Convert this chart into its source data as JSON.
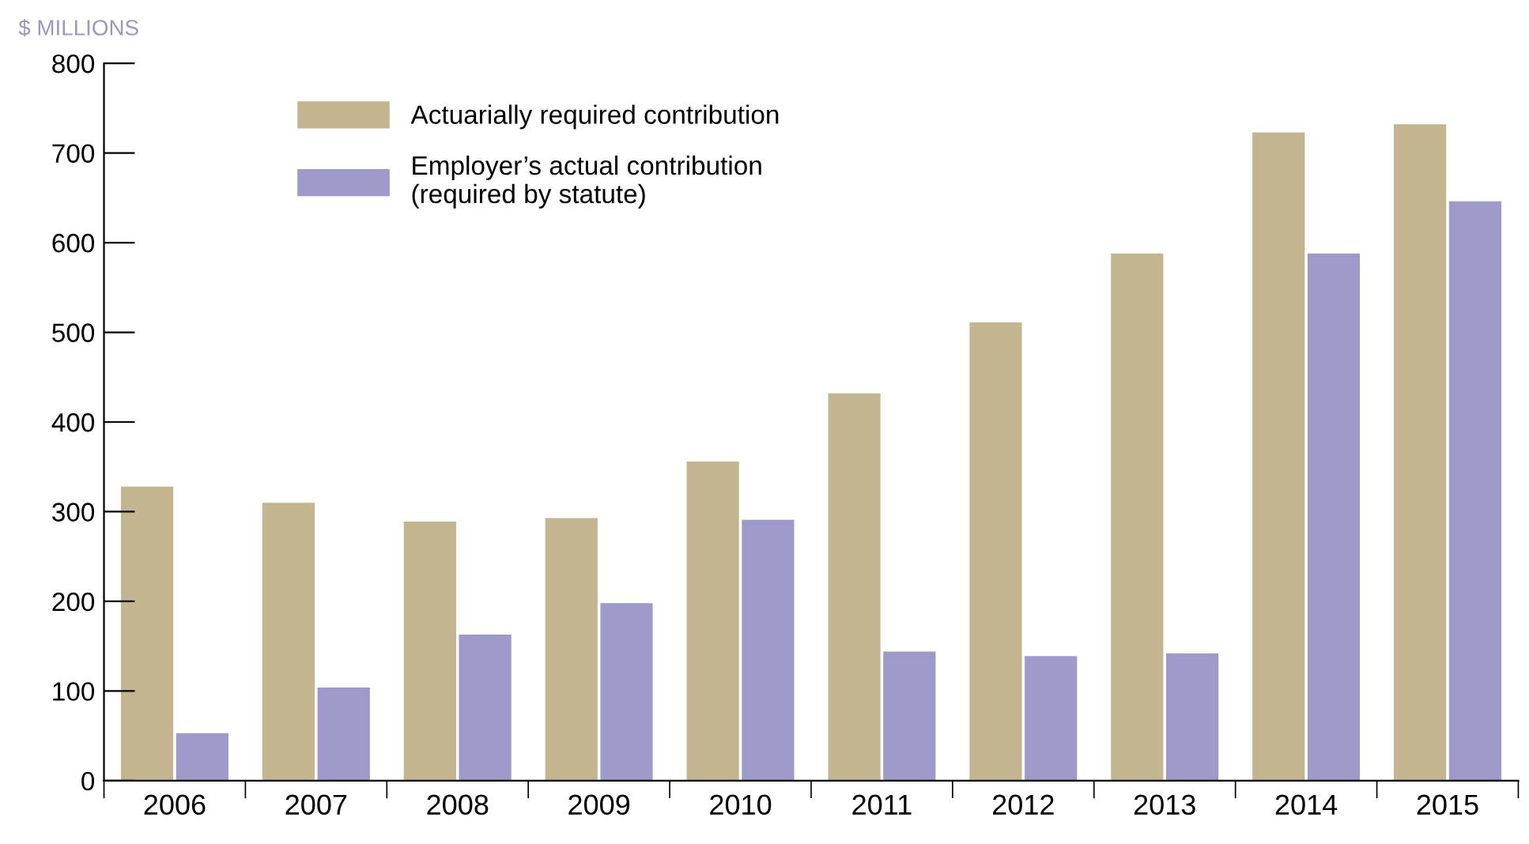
{
  "chart_data": {
    "type": "bar",
    "ylabel": "$ MILLIONS",
    "categories": [
      "2006",
      "2007",
      "2008",
      "2009",
      "2010",
      "2011",
      "2012",
      "2013",
      "2014",
      "2015"
    ],
    "series": [
      {
        "name": "Actuarially required contribution",
        "color": "#c2b58f",
        "values": [
          328,
          310,
          289,
          293,
          356,
          432,
          511,
          588,
          723,
          732
        ]
      },
      {
        "name": "Employer’s actual contribution\n(required by statute)",
        "color": "#9d99c8",
        "values": [
          53,
          104,
          163,
          198,
          291,
          144,
          139,
          142,
          588,
          646
        ]
      }
    ],
    "ylim": [
      0,
      800
    ],
    "yticks": [
      0,
      100,
      200,
      300,
      400,
      500,
      600,
      700,
      800
    ],
    "grid": false,
    "legend": "top left"
  }
}
